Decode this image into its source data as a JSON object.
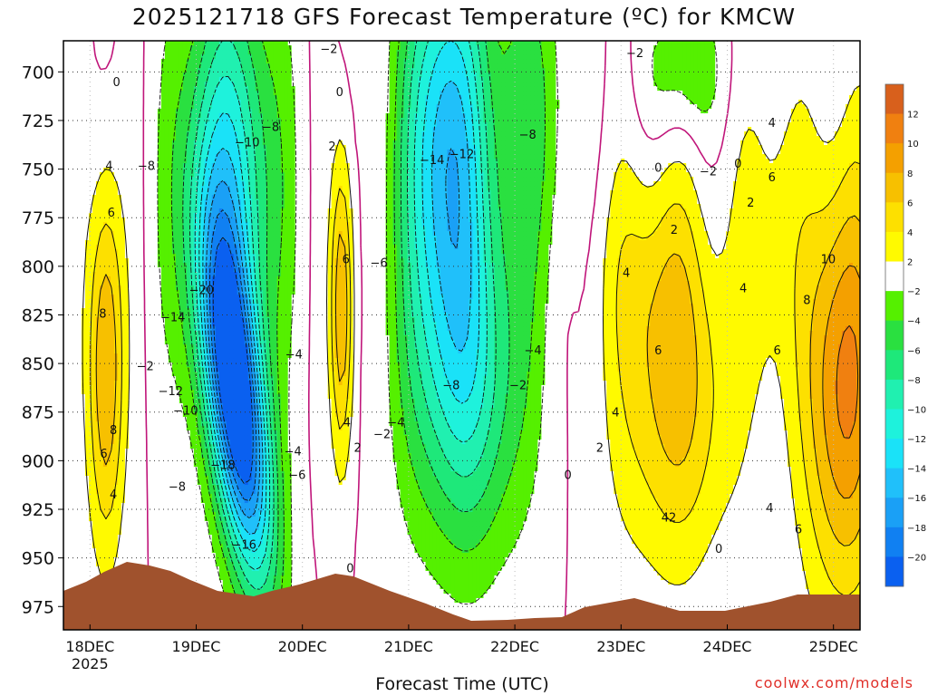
{
  "title": "2025121718 GFS Forecast Temperature (ºC) for KMCW",
  "xlabel": "Forecast Time (UTC)",
  "credit": "coolwx.com/models",
  "chart_data": {
    "type": "heatmap",
    "title": "2025121718 GFS Forecast Temperature (ºC) for KMCW",
    "xlabel": "Forecast Time (UTC)",
    "ylabel": "",
    "x_ticks": [
      "18DEC",
      "19DEC",
      "20DEC",
      "21DEC",
      "22DEC",
      "23DEC",
      "24DEC",
      "25DEC"
    ],
    "x_tick_sub": "2025",
    "y_ticks": [
      700,
      725,
      750,
      775,
      800,
      825,
      850,
      875,
      900,
      925,
      950,
      975
    ],
    "ylim": [
      987,
      684
    ],
    "xlim_days": [
      17.75,
      25.25
    ],
    "grid": "dotted",
    "colorbar": {
      "ticks": [
        "12",
        "10",
        "8",
        "6",
        "4",
        "2",
        "−2",
        "−4",
        "−6",
        "−8",
        "−10",
        "−12",
        "−14",
        "−16",
        "−18",
        "−20"
      ],
      "levels": [
        {
          "range": "12 to 14",
          "color": "#d8601c"
        },
        {
          "range": "10 to 12",
          "color": "#f08010"
        },
        {
          "range": "8 to 10",
          "color": "#f4a000"
        },
        {
          "range": "6 to 8",
          "color": "#f7c000"
        },
        {
          "range": "4 to 6",
          "color": "#fde000"
        },
        {
          "range": "2 to 4",
          "color": "#fffa00"
        },
        {
          "range": "-2 to 2",
          "color": "#ffffff"
        },
        {
          "range": "-4 to -2",
          "color": "#55f000"
        },
        {
          "range": "-6 to -4",
          "color": "#2ae040"
        },
        {
          "range": "-8 to -6",
          "color": "#1ee87a"
        },
        {
          "range": "-10 to -8",
          "color": "#20f0b0"
        },
        {
          "range": "-12 to -10",
          "color": "#1ef2dc"
        },
        {
          "range": "-14 to -12",
          "color": "#1ae2f8"
        },
        {
          "range": "-16 to -14",
          "color": "#20c0fa"
        },
        {
          "range": "-18 to -16",
          "color": "#1aa0f6"
        },
        {
          "range": "-20 to -18",
          "color": "#1080f2"
        },
        {
          "range": "-22 to -20",
          "color": "#0a60f0"
        }
      ]
    },
    "contour_labels": [
      {
        "t": 18.25,
        "p": 705,
        "v": "0"
      },
      {
        "t": 18.18,
        "p": 748,
        "v": "4"
      },
      {
        "t": 18.2,
        "p": 772,
        "v": "6"
      },
      {
        "t": 18.12,
        "p": 824,
        "v": "8"
      },
      {
        "t": 18.22,
        "p": 884,
        "v": "8"
      },
      {
        "t": 18.13,
        "p": 896,
        "v": "6"
      },
      {
        "t": 18.22,
        "p": 917,
        "v": "4"
      },
      {
        "t": 18.52,
        "p": 851,
        "v": "−2"
      },
      {
        "t": 18.53,
        "p": 748,
        "v": "−8"
      },
      {
        "t": 18.78,
        "p": 826,
        "v": "−14"
      },
      {
        "t": 19.05,
        "p": 812,
        "v": "−20"
      },
      {
        "t": 18.76,
        "p": 864,
        "v": "−12"
      },
      {
        "t": 18.9,
        "p": 874,
        "v": "−10"
      },
      {
        "t": 18.82,
        "p": 913,
        "v": "−8"
      },
      {
        "t": 19.25,
        "p": 902,
        "v": "−18"
      },
      {
        "t": 19.45,
        "p": 943,
        "v": "−16"
      },
      {
        "t": 19.48,
        "p": 736,
        "v": "−10"
      },
      {
        "t": 19.7,
        "p": 728,
        "v": "−8"
      },
      {
        "t": 19.91,
        "p": 895,
        "v": "−4"
      },
      {
        "t": 19.95,
        "p": 907,
        "v": "−6"
      },
      {
        "t": 19.92,
        "p": 845,
        "v": "−4"
      },
      {
        "t": 20.25,
        "p": 688,
        "v": "−2"
      },
      {
        "t": 20.35,
        "p": 710,
        "v": "0"
      },
      {
        "t": 20.28,
        "p": 738,
        "v": "2"
      },
      {
        "t": 20.41,
        "p": 796,
        "v": "6"
      },
      {
        "t": 20.42,
        "p": 880,
        "v": "4"
      },
      {
        "t": 20.52,
        "p": 893,
        "v": "2"
      },
      {
        "t": 20.45,
        "p": 955,
        "v": "0"
      },
      {
        "t": 20.72,
        "p": 798,
        "v": "−6"
      },
      {
        "t": 20.75,
        "p": 886,
        "v": "−2"
      },
      {
        "t": 20.88,
        "p": 880,
        "v": "−4"
      },
      {
        "t": 21.22,
        "p": 745,
        "v": "−14"
      },
      {
        "t": 21.5,
        "p": 742,
        "v": "−12"
      },
      {
        "t": 21.4,
        "p": 861,
        "v": "−8"
      },
      {
        "t": 22.12,
        "p": 732,
        "v": "−8"
      },
      {
        "t": 22.17,
        "p": 843,
        "v": "−4"
      },
      {
        "t": 22.03,
        "p": 861,
        "v": "−2"
      },
      {
        "t": 22.5,
        "p": 907,
        "v": "0"
      },
      {
        "t": 23.13,
        "p": 690,
        "v": "−2"
      },
      {
        "t": 23.35,
        "p": 749,
        "v": "0"
      },
      {
        "t": 23.82,
        "p": 751,
        "v": "−2"
      },
      {
        "t": 24.1,
        "p": 747,
        "v": "0"
      },
      {
        "t": 24.22,
        "p": 767,
        "v": "2"
      },
      {
        "t": 23.5,
        "p": 781,
        "v": "2"
      },
      {
        "t": 23.05,
        "p": 803,
        "v": "4"
      },
      {
        "t": 24.15,
        "p": 811,
        "v": "4"
      },
      {
        "t": 23.35,
        "p": 843,
        "v": "6"
      },
      {
        "t": 22.95,
        "p": 875,
        "v": "4"
      },
      {
        "t": 22.8,
        "p": 893,
        "v": "2"
      },
      {
        "t": 23.45,
        "p": 929,
        "v": "42"
      },
      {
        "t": 23.92,
        "p": 945,
        "v": "0"
      },
      {
        "t": 24.42,
        "p": 726,
        "v": "4"
      },
      {
        "t": 24.42,
        "p": 754,
        "v": "6"
      },
      {
        "t": 24.95,
        "p": 796,
        "v": "10"
      },
      {
        "t": 24.75,
        "p": 817,
        "v": "8"
      },
      {
        "t": 24.47,
        "p": 843,
        "v": "6"
      },
      {
        "t": 24.4,
        "p": 924,
        "v": "4"
      },
      {
        "t": 24.67,
        "p": 935,
        "v": "6"
      }
    ]
  }
}
